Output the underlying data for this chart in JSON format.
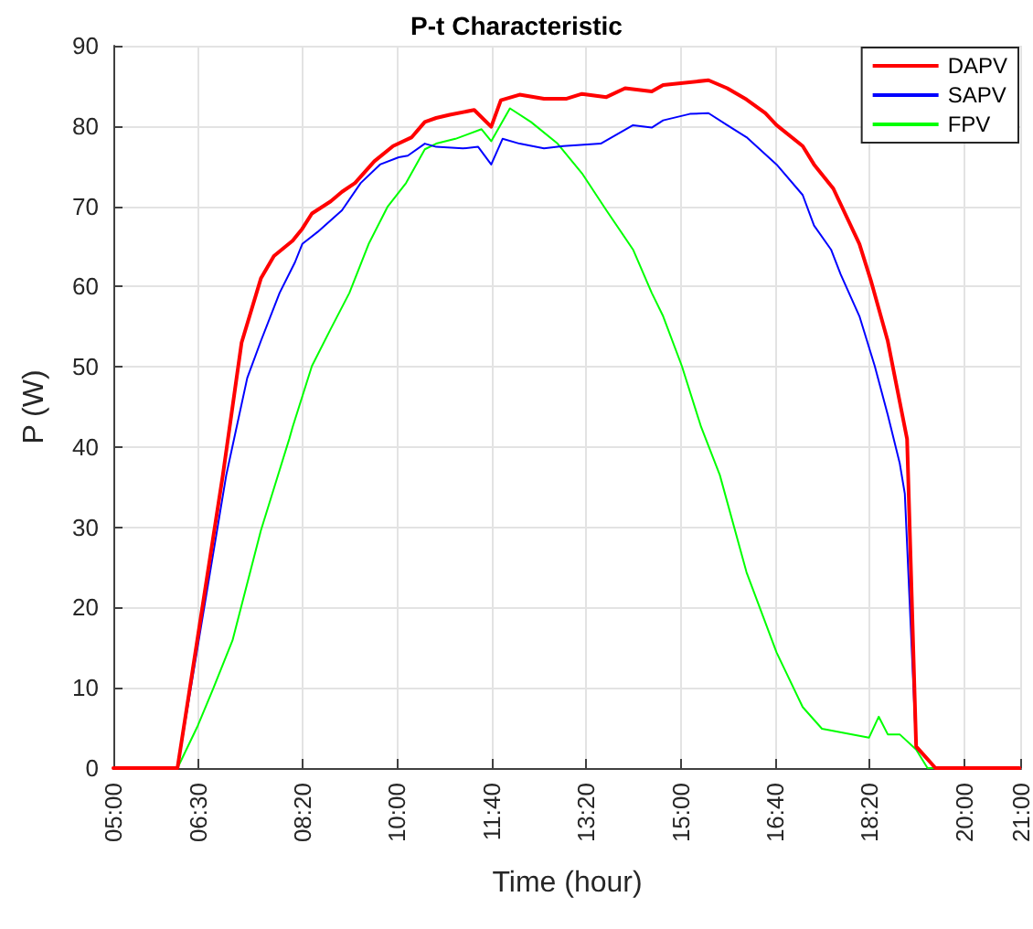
{
  "chart_data": {
    "type": "line",
    "title": "P-t Characteristic",
    "xlabel": "Time (hour)",
    "ylabel": "P (W)",
    "xlim": [
      5,
      21
    ],
    "xticks": [
      {
        "value": 5,
        "label": "05:00"
      },
      {
        "value": 6.5,
        "label": "06:30"
      },
      {
        "value": 8.3333,
        "label": "08:20"
      },
      {
        "value": 10,
        "label": "10:00"
      },
      {
        "value": 11.6667,
        "label": "11:40"
      },
      {
        "value": 13.3333,
        "label": "13:20"
      },
      {
        "value": 15,
        "label": "15:00"
      },
      {
        "value": 16.6667,
        "label": "16:40"
      },
      {
        "value": 18.3333,
        "label": "18:20"
      },
      {
        "value": 20,
        "label": "20:00"
      },
      {
        "value": 21,
        "label": "21:00"
      }
    ],
    "ylim": [
      0,
      90
    ],
    "yticks": [
      0,
      10,
      20,
      30,
      40,
      50,
      60,
      70,
      80,
      90
    ],
    "grid": true,
    "legend": "top right",
    "marker": "none",
    "line_style": "solid",
    "series": [
      {
        "name": "DAPV",
        "color": "#ff0000",
        "x": [
          5,
          6.13,
          6.93,
          7.26,
          7.6,
          7.83,
          8.16,
          8.33,
          8.5,
          8.83,
          9.03,
          9.26,
          9.6,
          9.93,
          10.26,
          10.49,
          10.69,
          10.93,
          11.36,
          11.66,
          11.83,
          12.16,
          12.59,
          12.99,
          13.26,
          13.69,
          14.02,
          14.49,
          14.69,
          15.49,
          15.82,
          16.16,
          16.49,
          16.69,
          17.15,
          17.35,
          17.69,
          18.15,
          18.35,
          18.65,
          18.82,
          18.99,
          19.15,
          19.49,
          20.97
        ],
        "values": [
          0,
          0,
          36.5,
          53,
          61,
          63.8,
          65.7,
          67.2,
          69.1,
          70.6,
          71.8,
          72.9,
          75.6,
          77.5,
          78.6,
          80.5,
          81,
          81.4,
          82,
          79.9,
          83.2,
          83.9,
          83.4,
          83.4,
          84,
          83.6,
          84.7,
          84.3,
          85.1,
          85.7,
          84.7,
          83.3,
          81.6,
          80.1,
          77.5,
          75.2,
          72.2,
          65.3,
          60.8,
          53.2,
          47.1,
          41,
          2.7,
          0,
          0
        ]
      },
      {
        "name": "SAPV",
        "color": "#0000ff",
        "x": [
          5,
          6.13,
          6.99,
          7.36,
          7.6,
          7.93,
          8.2,
          8.33,
          8.6,
          9.03,
          9.36,
          9.7,
          10.03,
          10.19,
          10.49,
          10.69,
          11.16,
          11.43,
          11.66,
          11.86,
          12.16,
          12.59,
          12.93,
          13.59,
          14.16,
          14.49,
          14.69,
          15.16,
          15.49,
          15.82,
          16.16,
          16.69,
          17.15,
          17.35,
          17.65,
          17.82,
          18.15,
          18.42,
          18.65,
          18.86,
          18.95,
          19.15,
          19.49,
          20.97
        ],
        "values": [
          0,
          0,
          36.5,
          48.6,
          53.2,
          59.2,
          63,
          65.3,
          66.8,
          69.5,
          72.9,
          75.2,
          76.1,
          76.3,
          77.8,
          77.4,
          77.2,
          77.4,
          75.2,
          78.4,
          77.8,
          77.2,
          77.5,
          77.8,
          80.1,
          79.8,
          80.7,
          81.5,
          81.6,
          80.1,
          78.6,
          75.2,
          71.4,
          67.6,
          64.6,
          61.5,
          56.3,
          50.1,
          44,
          38,
          34.2,
          2.5,
          0,
          0
        ]
      },
      {
        "name": "FPV",
        "color": "#00ff00",
        "x": [
          5,
          6.13,
          6.49,
          6.76,
          7.1,
          7.6,
          8.1,
          8.16,
          8.5,
          8.83,
          9.16,
          9.5,
          9.83,
          10.16,
          10.49,
          10.69,
          11.03,
          11.49,
          11.66,
          11.99,
          12.36,
          12.83,
          13.26,
          13.69,
          14.16,
          14.49,
          14.69,
          15.02,
          15.36,
          15.69,
          16.16,
          16.69,
          17.15,
          17.49,
          18.32,
          18.49,
          18.65,
          18.86,
          19.15,
          19.35,
          20.97
        ],
        "values": [
          0,
          0,
          5.3,
          9.9,
          15.9,
          29.6,
          41,
          42.5,
          50.1,
          54.7,
          59.2,
          65.3,
          69.9,
          72.9,
          77.1,
          77.8,
          78.4,
          79.6,
          78.1,
          82.2,
          80.5,
          77.8,
          74.1,
          69.5,
          64.6,
          59.2,
          56.3,
          50.1,
          42.5,
          36.5,
          24.4,
          14.4,
          7.6,
          4.9,
          3.8,
          6.4,
          4.2,
          4.2,
          2.3,
          0,
          0
        ]
      }
    ]
  }
}
